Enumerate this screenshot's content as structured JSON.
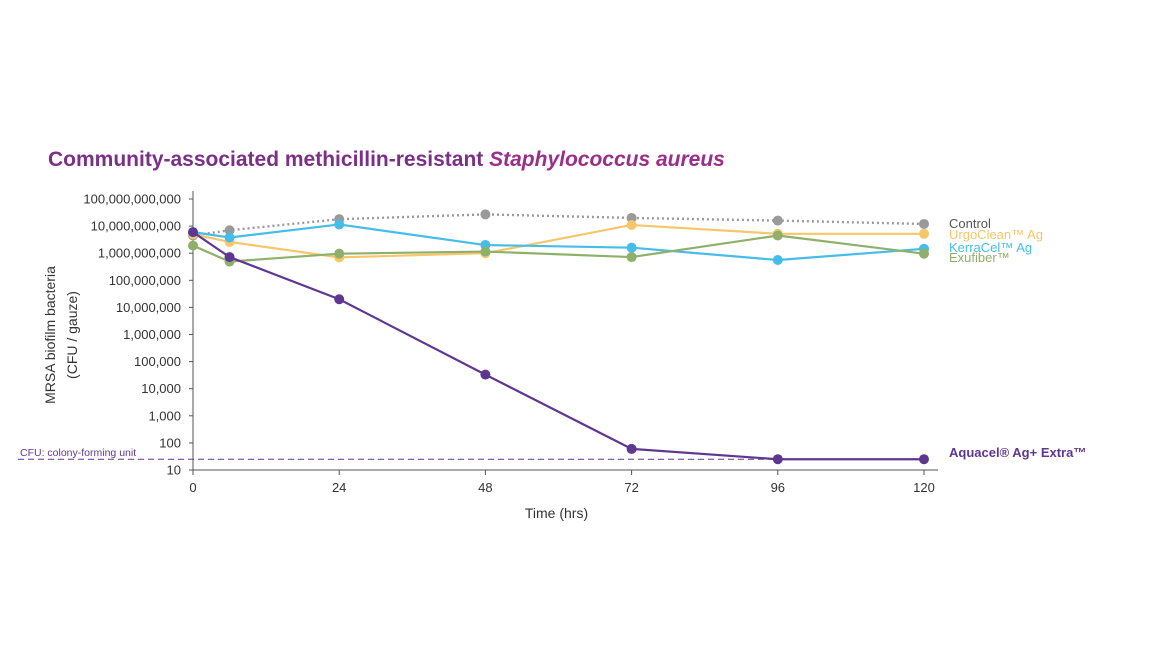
{
  "chart_data": {
    "type": "line",
    "title_main": "Community-associated methicillin-resistant ",
    "title_italic": "Staphylococcus aureus",
    "xlabel": "Time (hrs)",
    "ylabel_line1": "MRSA biofilm bacteria",
    "ylabel_line2": "(CFU / gauze)",
    "yscale": "log",
    "ylim": [
      10,
      100000000000
    ],
    "xlim": [
      0,
      120
    ],
    "x_ticks": [
      0,
      24,
      48,
      72,
      96,
      120
    ],
    "x_tick_labels": [
      "0",
      "24",
      "48",
      "72",
      "96",
      "120"
    ],
    "y_ticks": [
      10,
      100,
      1000,
      10000,
      100000,
      1000000,
      10000000,
      100000000,
      1000000000,
      10000000000,
      100000000000
    ],
    "y_tick_labels": [
      "10",
      "100",
      "1,000",
      "10,000",
      "100,000",
      "1,000,000",
      "10,000,000",
      "100,000,000",
      "1,000,000,000",
      "10,000,000,000",
      "100,000,000,000"
    ],
    "detection_limit": {
      "value": 25,
      "label": "CFU: colony-forming unit"
    },
    "series": [
      {
        "name": "Control",
        "color": "#9a9a9a",
        "style": "dotted",
        "x": [
          0,
          6,
          24,
          48,
          72,
          96,
          120
        ],
        "y": [
          4500000000,
          7000000000,
          18000000000,
          27000000000,
          20000000000,
          16000000000,
          12000000000
        ]
      },
      {
        "name": "UrgoClean™ Ag",
        "color": "#f5c76a",
        "style": "solid",
        "x": [
          0,
          6,
          24,
          48,
          72,
          96,
          120
        ],
        "y": [
          5000000000,
          2600000000,
          700000000,
          1000000000,
          11000000000,
          5200000000,
          5200000000
        ]
      },
      {
        "name": "KerraCel™ Ag",
        "color": "#45bde8",
        "style": "solid",
        "x": [
          0,
          6,
          24,
          48,
          72,
          96,
          120
        ],
        "y": [
          6000000000,
          3800000000,
          11500000000,
          2000000000,
          1600000000,
          560000000,
          1450000000
        ]
      },
      {
        "name": "Exufiber™",
        "color": "#8fb06b",
        "style": "solid",
        "x": [
          0,
          6,
          24,
          48,
          72,
          96,
          120
        ],
        "y": [
          1900000000,
          490000000,
          960000000,
          1150000000,
          720000000,
          4500000000,
          960000000
        ]
      },
      {
        "name": "Aquacel® Ag+ Extra™",
        "color": "#5f3791",
        "style": "solid",
        "x": [
          0,
          6,
          24,
          48,
          72,
          96,
          120
        ],
        "y": [
          6000000000,
          720000000,
          20000000,
          33000,
          60,
          25,
          25
        ]
      }
    ]
  }
}
